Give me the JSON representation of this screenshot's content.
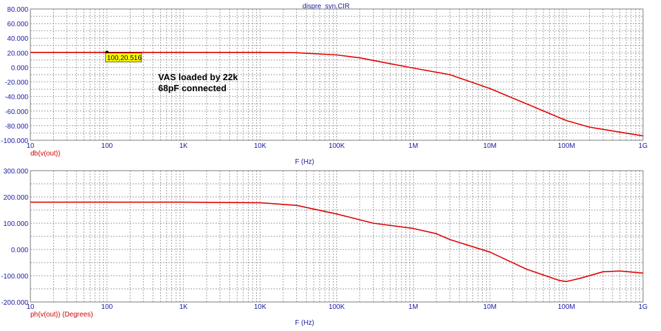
{
  "window_title": "dispre_syn.CIR",
  "annotation": {
    "lines": [
      "VAS loaded by 22k",
      "68pF connected"
    ]
  },
  "cursor": {
    "label": "100,20.516",
    "x": 100,
    "y": 20.516
  },
  "colors": {
    "trace": "#e00000",
    "axis_text": "#1a1aa0",
    "grid": "#7a7a7a",
    "cursor_box": "#ffff00"
  },
  "chart_data": [
    {
      "type": "line",
      "xscale": "log",
      "xlim": [
        10,
        1000000000
      ],
      "ylim": [
        -100,
        80
      ],
      "grid": true,
      "xlabel": "F (Hz)",
      "ylabel": "",
      "x_ticks": [
        "10",
        "100",
        "1K",
        "10K",
        "100K",
        "1M",
        "10M",
        "100M",
        "1G"
      ],
      "y_ticks": [
        "80.000",
        "60.000",
        "40.000",
        "20.000",
        "0.000",
        "-20.000",
        "-40.000",
        "-60.000",
        "-80.000",
        "-100.000"
      ],
      "series": [
        {
          "name": "db(v(out))",
          "x": [
            10,
            100,
            1000,
            10000,
            30000,
            100000,
            200000,
            500000,
            1000000,
            3000000,
            10000000,
            30000000,
            100000000,
            200000000,
            300000000,
            1000000000
          ],
          "y": [
            20.5,
            20.5,
            20.5,
            20.5,
            20.0,
            17.0,
            13.0,
            5.0,
            -1.0,
            -10.0,
            -29.0,
            -50.0,
            -73.0,
            -82.0,
            -85.0,
            -94.0
          ]
        }
      ]
    },
    {
      "type": "line",
      "xscale": "log",
      "xlim": [
        10,
        1000000000
      ],
      "ylim": [
        -200,
        300
      ],
      "grid": true,
      "xlabel": "F (Hz)",
      "ylabel": "",
      "x_ticks": [
        "10",
        "100",
        "1K",
        "10K",
        "100K",
        "1M",
        "10M",
        "100M",
        "1G"
      ],
      "y_ticks": [
        "300.000",
        "200.000",
        "100.000",
        "0.000",
        "-100.000",
        "-200.000"
      ],
      "series": [
        {
          "name": "ph(v(out)) (Degrees)",
          "x": [
            10,
            100,
            1000,
            10000,
            30000,
            100000,
            300000,
            1000000,
            2000000,
            3000000,
            10000000,
            30000000,
            80000000,
            100000000,
            150000000,
            300000000,
            500000000,
            1000000000
          ],
          "y": [
            180,
            180,
            180,
            178,
            168,
            135,
            100,
            80,
            60,
            38,
            -10,
            -75,
            -118,
            -122,
            -110,
            -85,
            -82,
            -90
          ]
        }
      ]
    }
  ]
}
